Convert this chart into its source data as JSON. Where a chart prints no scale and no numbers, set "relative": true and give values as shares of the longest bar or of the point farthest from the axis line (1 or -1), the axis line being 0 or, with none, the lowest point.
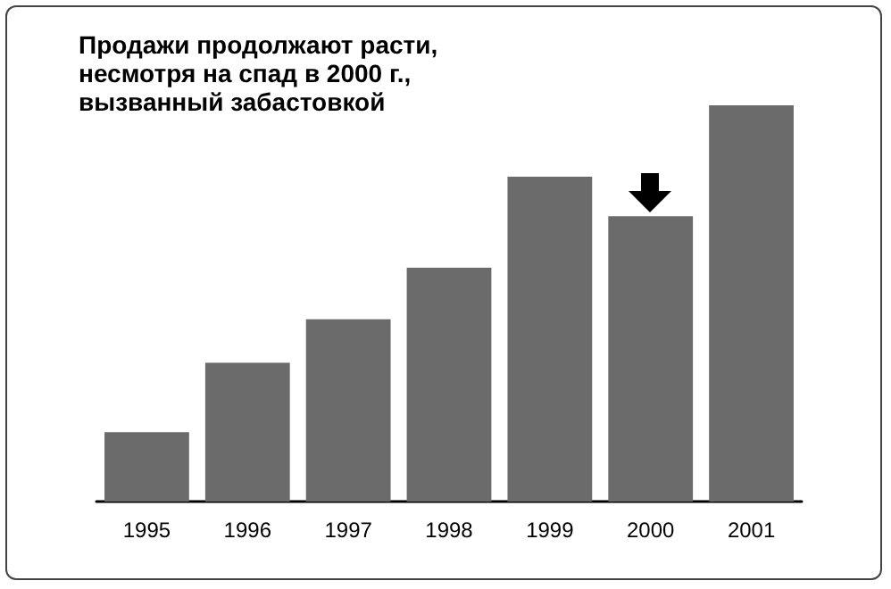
{
  "chart_data": {
    "type": "bar",
    "title": "Продажи продолжают расти,\nнесмотря на спад в 2000 г.,\nвызванный забастовкой",
    "categories": [
      "1995",
      "1996",
      "1997",
      "1998",
      "1999",
      "2000",
      "2001"
    ],
    "values": [
      0.175,
      0.35,
      0.46,
      0.59,
      0.82,
      0.72,
      1
    ],
    "color": "#6b6b6b",
    "relative": true
  }
}
